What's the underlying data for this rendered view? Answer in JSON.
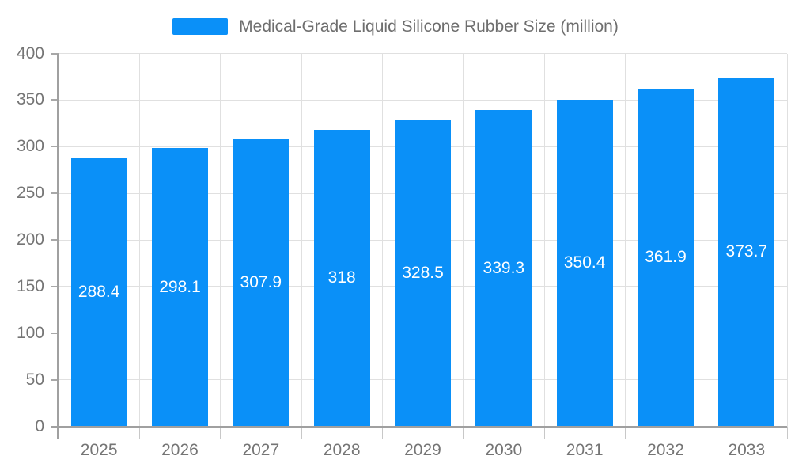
{
  "chart_data": {
    "type": "bar",
    "title": "",
    "legend": {
      "label": "Medical-Grade Liquid Silicone Rubber Size (million)",
      "position": "top-center"
    },
    "categories": [
      "2025",
      "2026",
      "2027",
      "2028",
      "2029",
      "2030",
      "2031",
      "2032",
      "2033"
    ],
    "series": [
      {
        "name": "Medical-Grade Liquid Silicone Rubber Size (million)",
        "values": [
          288.4,
          298.1,
          307.9,
          318,
          328.5,
          339.3,
          350.4,
          361.9,
          373.7
        ]
      }
    ],
    "bar_labels": [
      "288.4",
      "298.1",
      "307.9",
      "318",
      "328.5",
      "339.3",
      "350.4",
      "361.9",
      "373.7"
    ],
    "bar_label_position": "inside-center",
    "xlabel": "",
    "ylabel": "",
    "ylim": [
      0,
      400
    ],
    "yticks": [
      0,
      50,
      100,
      150,
      200,
      250,
      300,
      350,
      400
    ],
    "grid": true,
    "legend_position": "top"
  },
  "colors": {
    "bar": "#0a90f8",
    "bar_label": "#ffffff",
    "axis_text": "#757575",
    "legend_text": "#6e6e6e",
    "grid": "#e0e0e0",
    "axis_line": "#a0a0a0",
    "y_tick": "#a8a8a8",
    "x_tick": "#c8c8c8",
    "background": "#ffffff"
  }
}
